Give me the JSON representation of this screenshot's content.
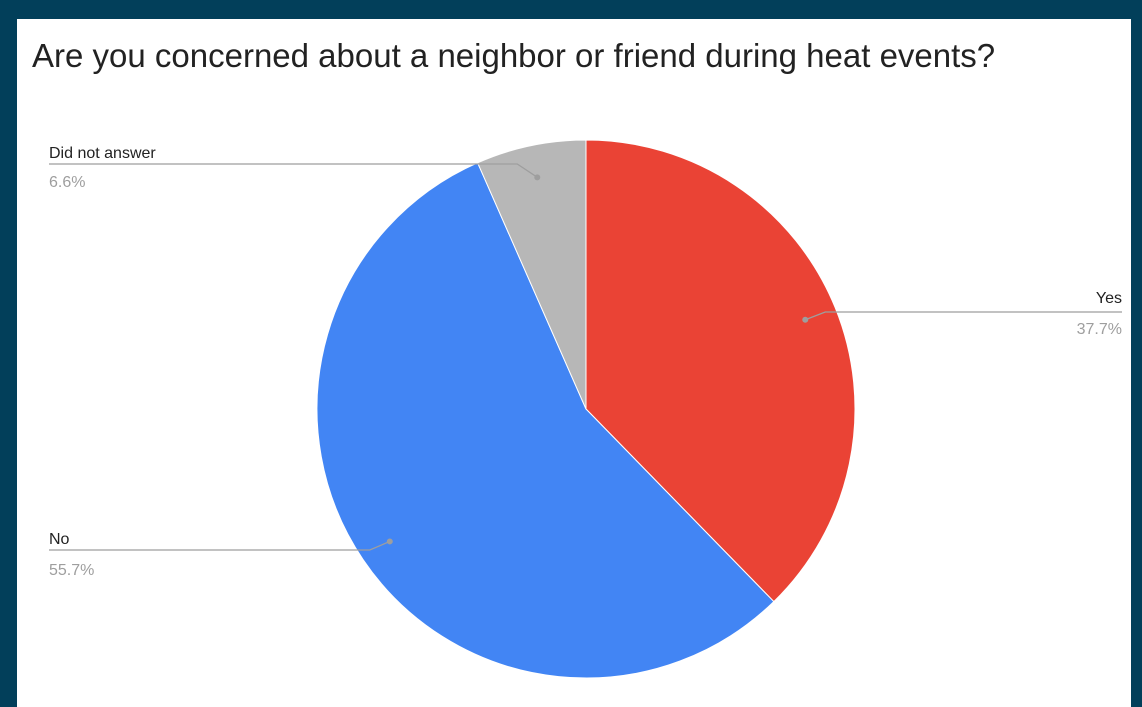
{
  "chart_data": {
    "type": "pie",
    "title": "Are you concerned about a neighbor or friend during heat events?",
    "slices": [
      {
        "label": "Yes",
        "value": 37.7,
        "display": "37.7%",
        "color": "#ea4335"
      },
      {
        "label": "No",
        "value": 55.7,
        "display": "55.7%",
        "color": "#4285f4"
      },
      {
        "label": "Did not answer",
        "value": 6.6,
        "display": "6.6%",
        "color": "#b7b7b7"
      }
    ],
    "legend": "none",
    "labels": "outside with leader lines"
  },
  "colors": {
    "background": "#023f5a",
    "panel": "#ffffff"
  }
}
